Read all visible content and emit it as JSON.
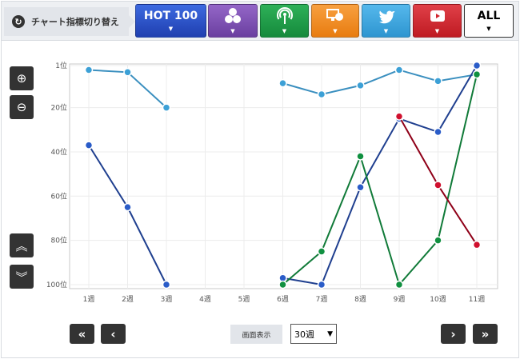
{
  "header": {
    "switch_label": "チャート指標切り替え",
    "switch_icon": "refresh-icon",
    "tabs": [
      {
        "label": "HOT 100",
        "color": "#2a4fc8",
        "icon": ""
      },
      {
        "label": "",
        "color": "#7b4fb0",
        "icon": "sales-download-icon"
      },
      {
        "label": "",
        "color": "#1c9a45",
        "icon": "streaming-antenna-icon"
      },
      {
        "label": "",
        "color": "#f28a1e",
        "icon": "pc-lookup-icon"
      },
      {
        "label": "",
        "color": "#3aa6e0",
        "icon": "twitter-icon"
      },
      {
        "label": "",
        "color": "#d2262e",
        "icon": "youtube-icon"
      },
      {
        "label": "ALL",
        "color": "#ffffff",
        "icon": ""
      }
    ]
  },
  "controls": {
    "zoom_in": "zoom-in-icon",
    "zoom_out": "zoom-out-icon",
    "scroll_up": "double-chevron-up-icon",
    "scroll_down": "double-chevron-down-icon",
    "display_label": "画面表示",
    "period_value": "30週"
  },
  "chart_data": {
    "type": "line",
    "categories": [
      "1週",
      "2週",
      "3週",
      "4週",
      "5週",
      "6週",
      "7週",
      "8週",
      "9週",
      "10週",
      "11週"
    ],
    "yticks": [
      {
        "v": 1,
        "label": "1位"
      },
      {
        "v": 20,
        "label": "20位"
      },
      {
        "v": 40,
        "label": "40位"
      },
      {
        "v": 60,
        "label": "60位"
      },
      {
        "v": 80,
        "label": "80位"
      },
      {
        "v": 100,
        "label": "100位"
      }
    ],
    "ylim": [
      1,
      100
    ],
    "y_inverted": true,
    "grid": true,
    "series": [
      {
        "color": "#3ca0d6",
        "line": "#3a8fbf",
        "values": [
          3,
          4,
          20,
          null,
          null,
          9,
          14,
          10,
          3,
          8,
          5
        ]
      },
      {
        "color": "#2a5cc8",
        "line": "#1f3f8f",
        "values": [
          37,
          65,
          100,
          null,
          null,
          97,
          100,
          56,
          25,
          31,
          1
        ]
      },
      {
        "color": "#109040",
        "line": "#107a38",
        "values": [
          null,
          null,
          null,
          null,
          null,
          100,
          85,
          42,
          100,
          80,
          5
        ]
      },
      {
        "color": "#d0102e",
        "line": "#8f0018",
        "values": [
          null,
          null,
          null,
          null,
          null,
          null,
          null,
          null,
          24,
          55,
          82
        ]
      }
    ]
  }
}
